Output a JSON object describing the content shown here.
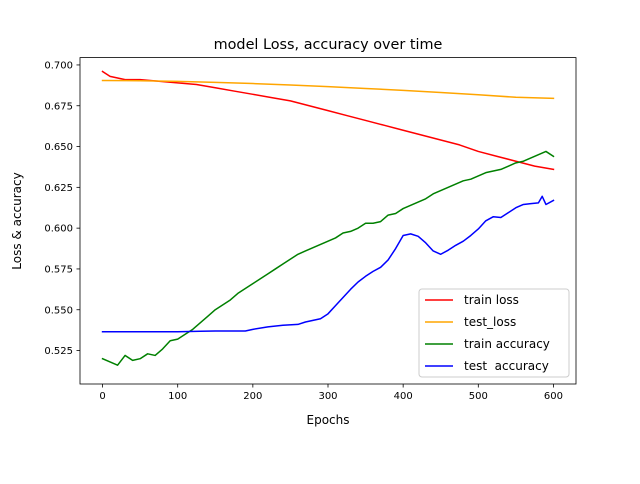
{
  "chart_data": {
    "type": "line",
    "title": "model Loss, accuracy over time",
    "xlabel": "Epochs",
    "ylabel": "Loss & accuracy",
    "xlim": [
      -30,
      630
    ],
    "ylim": [
      0.5045,
      0.7045
    ],
    "xticks": [
      0,
      100,
      200,
      300,
      400,
      500,
      600
    ],
    "xtick_labels": [
      "0",
      "100",
      "200",
      "300",
      "400",
      "500",
      "600"
    ],
    "yticks": [
      0.525,
      0.55,
      0.575,
      0.6,
      0.625,
      0.65,
      0.675,
      0.7
    ],
    "ytick_labels": [
      "0.525",
      "0.550",
      "0.575",
      "0.600",
      "0.625",
      "0.650",
      "0.675",
      "0.700"
    ],
    "grid": false,
    "legend_position": "bottom-right",
    "series": [
      {
        "name": "train loss",
        "color": "#ff0000",
        "x": [
          0,
          10,
          20,
          30,
          50,
          75,
          100,
          125,
          150,
          175,
          200,
          225,
          250,
          275,
          300,
          325,
          350,
          375,
          400,
          425,
          450,
          475,
          500,
          525,
          550,
          575,
          600
        ],
        "y": [
          0.696,
          0.693,
          0.692,
          0.691,
          0.691,
          0.69,
          0.689,
          0.688,
          0.686,
          0.684,
          0.682,
          0.68,
          0.678,
          0.675,
          0.672,
          0.669,
          0.666,
          0.663,
          0.66,
          0.657,
          0.654,
          0.651,
          0.647,
          0.644,
          0.641,
          0.638,
          0.636
        ]
      },
      {
        "name": "test_loss",
        "color": "#ffa500",
        "x": [
          0,
          50,
          100,
          150,
          200,
          250,
          300,
          350,
          400,
          450,
          500,
          550,
          600
        ],
        "y": [
          0.6905,
          0.6903,
          0.6899,
          0.6893,
          0.6886,
          0.6877,
          0.6867,
          0.6856,
          0.6844,
          0.6831,
          0.6817,
          0.6802,
          0.6795
        ]
      },
      {
        "name": "train accuracy",
        "color": "#008000",
        "x": [
          0,
          10,
          20,
          30,
          40,
          50,
          60,
          70,
          80,
          90,
          100,
          110,
          120,
          130,
          140,
          150,
          160,
          170,
          180,
          190,
          200,
          210,
          220,
          230,
          240,
          250,
          260,
          270,
          280,
          290,
          300,
          310,
          320,
          330,
          340,
          350,
          360,
          370,
          380,
          390,
          400,
          410,
          420,
          430,
          440,
          450,
          460,
          470,
          480,
          490,
          500,
          510,
          520,
          530,
          540,
          550,
          560,
          570,
          580,
          590,
          600
        ],
        "y": [
          0.52,
          0.518,
          0.516,
          0.522,
          0.519,
          0.52,
          0.523,
          0.522,
          0.526,
          0.531,
          0.532,
          0.535,
          0.538,
          0.542,
          0.546,
          0.55,
          0.553,
          0.556,
          0.56,
          0.563,
          0.566,
          0.569,
          0.572,
          0.575,
          0.578,
          0.581,
          0.584,
          0.586,
          0.588,
          0.59,
          0.592,
          0.594,
          0.597,
          0.598,
          0.6,
          0.603,
          0.603,
          0.604,
          0.608,
          0.609,
          0.612,
          0.614,
          0.616,
          0.618,
          0.621,
          0.623,
          0.625,
          0.627,
          0.629,
          0.63,
          0.632,
          0.634,
          0.635,
          0.636,
          0.638,
          0.64,
          0.641,
          0.643,
          0.645,
          0.647,
          0.644
        ]
      },
      {
        "name": "test  accuracy",
        "color": "#0000ff",
        "x": [
          0,
          50,
          100,
          130,
          150,
          190,
          200,
          220,
          240,
          260,
          270,
          280,
          290,
          300,
          310,
          320,
          330,
          340,
          350,
          360,
          370,
          380,
          390,
          400,
          410,
          420,
          430,
          440,
          450,
          460,
          470,
          480,
          490,
          500,
          510,
          520,
          530,
          540,
          550,
          560,
          570,
          580,
          585,
          590,
          600
        ],
        "y": [
          0.5365,
          0.5365,
          0.5365,
          0.5368,
          0.537,
          0.537,
          0.538,
          0.5395,
          0.5405,
          0.541,
          0.5425,
          0.5435,
          0.5445,
          0.5475,
          0.5525,
          0.5575,
          0.5625,
          0.567,
          0.5705,
          0.5735,
          0.576,
          0.5805,
          0.5875,
          0.5955,
          0.5965,
          0.595,
          0.591,
          0.586,
          0.584,
          0.5865,
          0.5895,
          0.592,
          0.5955,
          0.5995,
          0.6045,
          0.607,
          0.6065,
          0.6095,
          0.6125,
          0.6145,
          0.615,
          0.6155,
          0.6195,
          0.6145,
          0.617
        ]
      }
    ]
  }
}
